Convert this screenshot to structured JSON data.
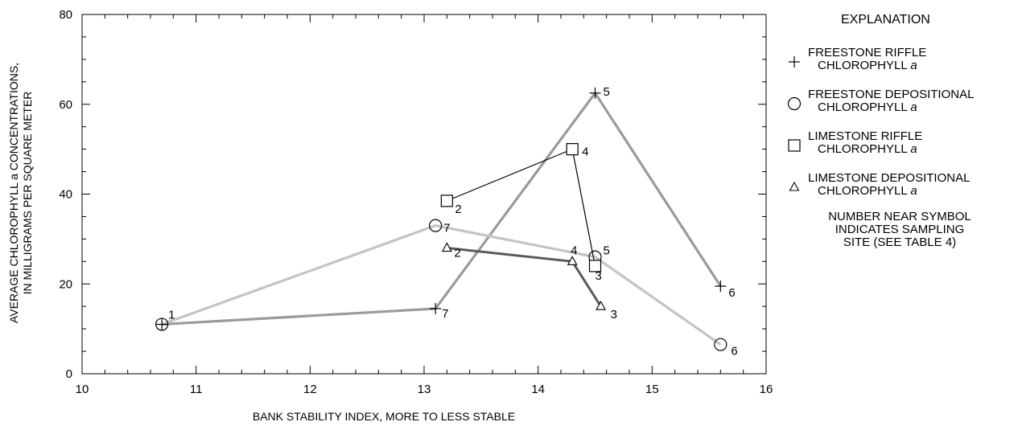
{
  "chart_data": {
    "type": "line",
    "xlabel": "BANK STABILITY INDEX, MORE TO LESS STABLE",
    "ylabel_lines": [
      "AVERAGE CHLOROPHYLL a CONCENTRATIONS,",
      "IN MILLIGRAMS PER SQUARE METER"
    ],
    "xlim": [
      10,
      16
    ],
    "ylim": [
      0,
      80
    ],
    "xticks": [
      10,
      11,
      12,
      13,
      14,
      15,
      16
    ],
    "yticks": [
      0,
      20,
      40,
      60,
      80
    ],
    "grid": false,
    "legend_position": "right",
    "series": [
      {
        "name": "FREESTONE RIFFLE CHLOROPHYLL a",
        "marker": "plus",
        "line_color": "#9a9a9a",
        "points": [
          {
            "x": 10.7,
            "y": 11,
            "site": "1"
          },
          {
            "x": 13.1,
            "y": 14.5,
            "site": "7"
          },
          {
            "x": 14.5,
            "y": 62.5,
            "site": "5"
          },
          {
            "x": 15.6,
            "y": 19.5,
            "site": "6"
          }
        ]
      },
      {
        "name": "FREESTONE DEPOSITIONAL CHLOROPHYLL a",
        "marker": "circle",
        "line_color": "#c4c4c4",
        "points": [
          {
            "x": 10.7,
            "y": 11,
            "site": ""
          },
          {
            "x": 13.1,
            "y": 33,
            "site": "7"
          },
          {
            "x": 14.5,
            "y": 26,
            "site": "5"
          },
          {
            "x": 15.6,
            "y": 6.5,
            "site": "6"
          }
        ]
      },
      {
        "name": "LIMESTONE RIFFLE CHLOROPHYLL a",
        "marker": "square",
        "line_color": "#000000",
        "points": [
          {
            "x": 13.2,
            "y": 38.5,
            "site": "2"
          },
          {
            "x": 14.3,
            "y": 50,
            "site": "4"
          },
          {
            "x": 14.5,
            "y": 24,
            "site": "3"
          }
        ]
      },
      {
        "name": "LIMESTONE DEPOSITIONAL CHLOROPHYLL a",
        "marker": "triangle",
        "line_color": "#5a5a5a",
        "points": [
          {
            "x": 13.2,
            "y": 28,
            "site": "2"
          },
          {
            "x": 14.3,
            "y": 25,
            "site": "4"
          },
          {
            "x": 14.55,
            "y": 15,
            "site": "3"
          }
        ]
      }
    ]
  },
  "legend": {
    "title": "EXPLANATION",
    "entries": [
      {
        "line1": "FREESTONE RIFFLE",
        "line2": "CHLOROPHYLL",
        "italic": "a",
        "symbol": "plus"
      },
      {
        "line1": "FREESTONE DEPOSITIONAL",
        "line2": "CHLOROPHYLL",
        "italic": "a",
        "symbol": "circle"
      },
      {
        "line1": "LIMESTONE RIFFLE",
        "line2": "CHLOROPHYLL",
        "italic": "a",
        "symbol": "square"
      },
      {
        "line1": "LIMESTONE DEPOSITIONAL",
        "line2": "CHLOROPHYLL",
        "italic": "a",
        "symbol": "triangle"
      }
    ],
    "note_lines": [
      "NUMBER NEAR SYMBOL",
      "INDICATES SAMPLING",
      "SITE (SEE TABLE 4)"
    ]
  }
}
